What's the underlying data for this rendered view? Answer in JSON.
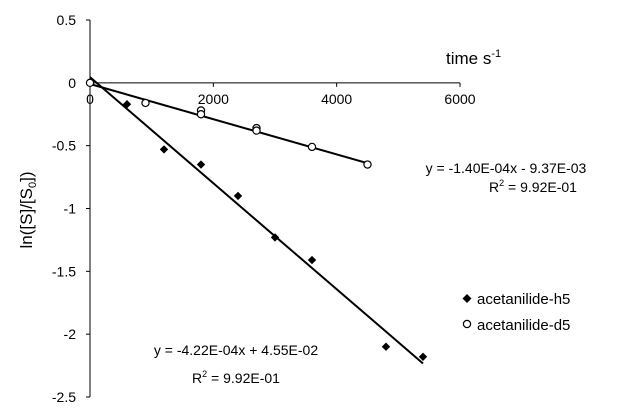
{
  "chart_data": {
    "type": "scatter",
    "xlabel": "time s",
    "xlabel_sup": "-1",
    "ylabel": "ln([S]/[S",
    "ylabel_sub": "0",
    "ylabel_tail": "])",
    "xlim": [
      0,
      6000
    ],
    "ylim": [
      -2.5,
      0.5
    ],
    "x_ticks": [
      {
        "v": 0,
        "label": "0"
      },
      {
        "v": 2000,
        "label": "2000"
      },
      {
        "v": 4000,
        "label": "4000"
      },
      {
        "v": 6000,
        "label": "6000"
      }
    ],
    "y_ticks": [
      {
        "v": 0.5,
        "label": "0.5"
      },
      {
        "v": 0,
        "label": "0"
      },
      {
        "v": -0.5,
        "label": "-0.5"
      },
      {
        "v": -1,
        "label": "-1"
      },
      {
        "v": -1.5,
        "label": "-1.5"
      },
      {
        "v": -2,
        "label": "-2"
      },
      {
        "v": -2.5,
        "label": "-2.5"
      }
    ],
    "grid": false,
    "legend_position": "right",
    "series": [
      {
        "name": "acetanilide-h5",
        "marker": "diamond",
        "points": [
          [
            0,
            0.0
          ],
          [
            600,
            -0.17
          ],
          [
            1200,
            -0.53
          ],
          [
            1800,
            -0.65
          ],
          [
            2400,
            -0.9
          ],
          [
            3000,
            -1.23
          ],
          [
            3600,
            -1.41
          ],
          [
            4800,
            -2.1
          ],
          [
            5400,
            -2.18
          ]
        ],
        "fit": {
          "slope": -0.000422,
          "intercept": 0.0455,
          "x_range": [
            0,
            5400
          ]
        },
        "equation": "y = -4.22E-04x + 4.55E-02",
        "r2_prefix": "R",
        "r2_sup": "2",
        "r2_value": " = 9.92E-01"
      },
      {
        "name": "acetanilide-d5",
        "marker": "circle",
        "points": [
          [
            0,
            0.0
          ],
          [
            900,
            -0.16
          ],
          [
            1800,
            -0.22
          ],
          [
            1800,
            -0.25
          ],
          [
            2700,
            -0.36
          ],
          [
            2700,
            -0.38
          ],
          [
            3600,
            -0.51
          ],
          [
            4500,
            -0.65
          ]
        ],
        "fit": {
          "slope": -0.00014,
          "intercept": -0.00937,
          "x_range": [
            0,
            4500
          ]
        },
        "equation": "y = -1.40E-04x - 9.37E-03",
        "r2_prefix": "R",
        "r2_sup": "2",
        "r2_value": " = 9.92E-01"
      }
    ]
  }
}
